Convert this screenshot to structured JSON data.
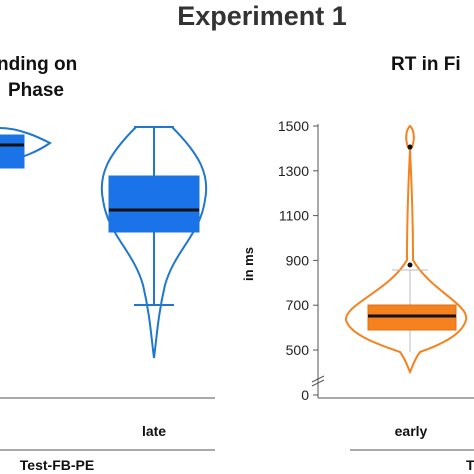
{
  "figure": {
    "title": "Experiment 1",
    "left_panel_title_line1": "nding on",
    "left_panel_title_line2": "Phase",
    "right_panel_title": "RT in Fi",
    "left_bottom_label": "Test-FB-PE",
    "right_bottom_label": "T"
  },
  "colors": {
    "blue": "#1a73e8",
    "blue_outline": "#1f77d0",
    "orange": "#f5821f",
    "median": "#111111",
    "whisker_grey": "#bbbbbb"
  },
  "chart_data": [
    {
      "type": "violin",
      "panel": "left",
      "categories": [
        "",
        "late"
      ],
      "series": [
        {
          "category": "late",
          "min": 0.0,
          "q1": 0.55,
          "median": 0.62,
          "q3": 0.74,
          "max": 1.0
        }
      ],
      "note_values_are_fraction_of_visible_range": true
    },
    {
      "type": "violin",
      "panel": "right",
      "ylabel": "in ms",
      "yticks": [
        0,
        500,
        700,
        900,
        1100,
        1300,
        1500
      ],
      "ylim": [
        400,
        1500
      ],
      "axis_break": true,
      "categories": [
        "early"
      ],
      "series": [
        {
          "category": "early",
          "min": 500,
          "q1": 580,
          "median": 640,
          "q3": 670,
          "max": 800,
          "mean": 880,
          "outlier": 1400
        }
      ]
    }
  ]
}
